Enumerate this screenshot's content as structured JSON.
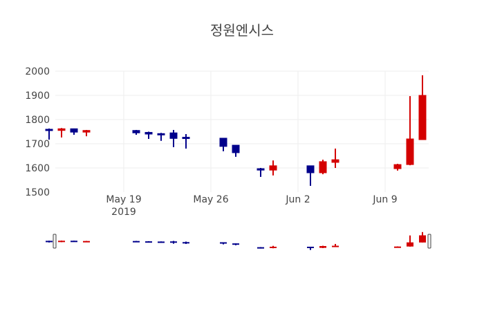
{
  "chart_data": {
    "type": "candlestick",
    "title": "정원엔시스",
    "xlabel": "",
    "ylabel": "",
    "ylim": [
      1500,
      2000
    ],
    "yticks": [
      1500,
      1600,
      1700,
      1800,
      1900,
      2000
    ],
    "xticks": [
      {
        "label": "May 19",
        "sublabel": "2019",
        "date": "2019-05-19"
      },
      {
        "label": "May 26",
        "sublabel": "",
        "date": "2019-05-26"
      },
      {
        "label": "Jun 2",
        "sublabel": "",
        "date": "2019-06-02"
      },
      {
        "label": "Jun 9",
        "sublabel": "",
        "date": "2019-06-09"
      }
    ],
    "grid": true,
    "rangeslider": true,
    "colors": {
      "increasing": "#d40000",
      "decreasing": "#00008b",
      "grid": "#eeeeee"
    },
    "series": [
      {
        "date": "2019-05-13",
        "open": 1760,
        "high": 1763,
        "low": 1717,
        "close": 1755
      },
      {
        "date": "2019-05-14",
        "open": 1755,
        "high": 1765,
        "low": 1726,
        "close": 1762
      },
      {
        "date": "2019-05-15",
        "open": 1762,
        "high": 1763,
        "low": 1737,
        "close": 1748
      },
      {
        "date": "2019-05-16",
        "open": 1748,
        "high": 1757,
        "low": 1731,
        "close": 1755
      },
      {
        "date": "2019-05-20",
        "open": 1755,
        "high": 1757,
        "low": 1737,
        "close": 1745
      },
      {
        "date": "2019-05-21",
        "open": 1747,
        "high": 1750,
        "low": 1720,
        "close": 1740
      },
      {
        "date": "2019-05-22",
        "open": 1742,
        "high": 1745,
        "low": 1712,
        "close": 1740
      },
      {
        "date": "2019-05-23",
        "open": 1745,
        "high": 1757,
        "low": 1686,
        "close": 1722
      },
      {
        "date": "2019-05-24",
        "open": 1727,
        "high": 1740,
        "low": 1680,
        "close": 1722
      },
      {
        "date": "2019-05-27",
        "open": 1723,
        "high": 1723,
        "low": 1669,
        "close": 1689
      },
      {
        "date": "2019-05-28",
        "open": 1694,
        "high": 1694,
        "low": 1646,
        "close": 1663
      },
      {
        "date": "2019-05-30",
        "open": 1597,
        "high": 1600,
        "low": 1563,
        "close": 1591
      },
      {
        "date": "2019-05-31",
        "open": 1591,
        "high": 1631,
        "low": 1569,
        "close": 1609
      },
      {
        "date": "2019-06-03",
        "open": 1609,
        "high": 1609,
        "low": 1526,
        "close": 1580
      },
      {
        "date": "2019-06-04",
        "open": 1580,
        "high": 1634,
        "low": 1574,
        "close": 1626
      },
      {
        "date": "2019-06-05",
        "open": 1623,
        "high": 1680,
        "low": 1600,
        "close": 1634
      },
      {
        "date": "2019-06-10",
        "open": 1597,
        "high": 1617,
        "low": 1589,
        "close": 1614
      },
      {
        "date": "2019-06-11",
        "open": 1614,
        "high": 1897,
        "low": 1611,
        "close": 1720
      },
      {
        "date": "2019-06-12",
        "open": 1717,
        "high": 1983,
        "low": 1717,
        "close": 1900
      }
    ]
  }
}
